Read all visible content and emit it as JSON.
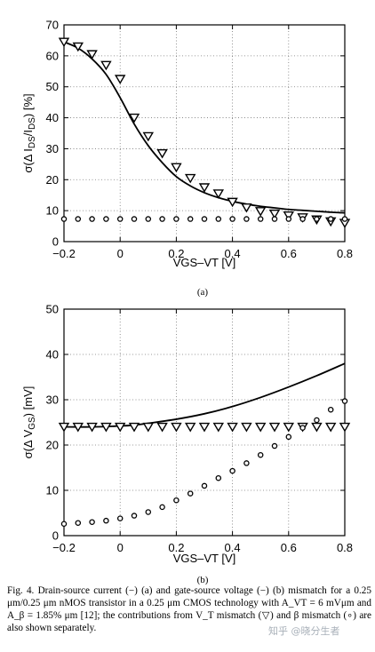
{
  "chart_data": [
    {
      "type": "line",
      "title": "",
      "panel_label": "(a)",
      "xlabel": "VGS–VT [V]",
      "ylabel_parts": [
        "σ(Δ I",
        "DS",
        "/I",
        "DS",
        ") [%]"
      ],
      "xlim": [
        -0.2,
        0.8
      ],
      "ylim": [
        0,
        70
      ],
      "xticks": [
        "−0.2",
        "0",
        "0.2",
        "0.4",
        "0.6",
        "0.8"
      ],
      "yticks": [
        "0",
        "10",
        "20",
        "30",
        "40",
        "50",
        "60",
        "70"
      ],
      "grid": true,
      "series": [
        {
          "marker": "line",
          "x": [
            -0.2,
            -0.15,
            -0.1,
            -0.05,
            0.0,
            0.05,
            0.1,
            0.15,
            0.2,
            0.25,
            0.3,
            0.35,
            0.4,
            0.45,
            0.5,
            0.55,
            0.6,
            0.65,
            0.7,
            0.75,
            0.8
          ],
          "y": [
            64.5,
            62.5,
            59,
            54,
            46.5,
            38,
            31,
            25.5,
            21,
            18,
            15.8,
            14.2,
            13,
            12.1,
            11.4,
            10.9,
            10.4,
            10.1,
            9.8,
            9.5,
            9.3
          ]
        },
        {
          "marker": "triangle-down",
          "x": [
            -0.2,
            -0.15,
            -0.1,
            -0.05,
            0.0,
            0.05,
            0.1,
            0.15,
            0.2,
            0.25,
            0.3,
            0.35,
            0.4,
            0.45,
            0.5,
            0.55,
            0.6,
            0.65,
            0.7,
            0.75,
            0.8
          ],
          "y": [
            64.5,
            63,
            60.5,
            57,
            52.5,
            40,
            34,
            28.5,
            24,
            20.5,
            17.5,
            15.5,
            12.8,
            11,
            9.8,
            9,
            8.4,
            7.8,
            7.1,
            6.5,
            6
          ]
        },
        {
          "marker": "circle",
          "x": [
            -0.2,
            -0.15,
            -0.1,
            -0.05,
            0.0,
            0.05,
            0.1,
            0.15,
            0.2,
            0.25,
            0.3,
            0.35,
            0.4,
            0.45,
            0.5,
            0.55,
            0.6,
            0.65,
            0.7,
            0.75,
            0.8
          ],
          "y": [
            7.3,
            7.3,
            7.3,
            7.3,
            7.3,
            7.3,
            7.3,
            7.3,
            7.3,
            7.3,
            7.3,
            7.3,
            7.3,
            7.3,
            7.3,
            7.3,
            7.3,
            7.3,
            7.3,
            7.3,
            7.3
          ]
        }
      ]
    },
    {
      "type": "line",
      "title": "",
      "panel_label": "(b)",
      "xlabel": "VGS–VT [V]",
      "ylabel_parts": [
        "σ(Δ V",
        "GS",
        ") [mV]"
      ],
      "xlim": [
        -0.2,
        0.8
      ],
      "ylim": [
        0,
        50
      ],
      "xticks": [
        "−0.2",
        "0",
        "0.2",
        "0.4",
        "0.6",
        "0.8"
      ],
      "yticks": [
        "0",
        "10",
        "20",
        "30",
        "40",
        "50"
      ],
      "grid": true,
      "series": [
        {
          "marker": "line",
          "x": [
            -0.2,
            -0.1,
            0.0,
            0.05,
            0.1,
            0.2,
            0.3,
            0.4,
            0.5,
            0.6,
            0.7,
            0.8
          ],
          "y": [
            24.0,
            24.0,
            24.2,
            24.4,
            24.8,
            25.7,
            26.9,
            28.5,
            30.5,
            32.8,
            35.3,
            38.0
          ]
        },
        {
          "marker": "triangle-down",
          "x": [
            -0.2,
            -0.15,
            -0.1,
            -0.05,
            0.0,
            0.05,
            0.1,
            0.15,
            0.2,
            0.25,
            0.3,
            0.35,
            0.4,
            0.45,
            0.5,
            0.55,
            0.6,
            0.65,
            0.7,
            0.75,
            0.8
          ],
          "y": [
            24,
            24,
            24,
            24,
            24,
            24,
            24,
            24,
            24,
            24,
            24,
            24,
            24,
            24,
            24,
            24,
            24,
            24,
            24,
            24,
            24
          ]
        },
        {
          "marker": "circle",
          "x": [
            -0.2,
            -0.15,
            -0.1,
            -0.05,
            0.0,
            0.05,
            0.1,
            0.15,
            0.2,
            0.25,
            0.3,
            0.35,
            0.4,
            0.45,
            0.5,
            0.55,
            0.6,
            0.65,
            0.7,
            0.75,
            0.8
          ],
          "y": [
            2.6,
            2.8,
            3.0,
            3.3,
            3.8,
            4.4,
            5.2,
            6.3,
            7.8,
            9.3,
            11.0,
            12.7,
            14.3,
            16.0,
            17.8,
            19.8,
            21.8,
            23.8,
            25.5,
            27.8,
            29.7
          ]
        }
      ]
    }
  ],
  "caption": {
    "fig": "Fig. 4.",
    "text": "Drain-source current (−) (a) and gate-source voltage (−) (b) mismatch for a 0.25 μm/0.25 μm nMOS transistor in a 0.25 μm CMOS technology with A_VT = 6 mVμm and A_β = 1.85% μm [12]; the contributions from V_T mismatch (▽) and β mismatch (∘) are also shown separately."
  },
  "watermark": "知乎 @晓分生者"
}
